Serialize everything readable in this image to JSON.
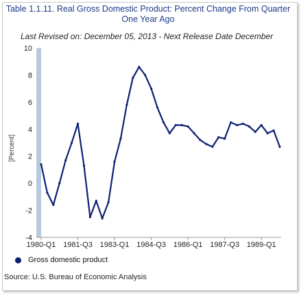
{
  "title": "Table 1.1.11. Real Gross Domestic Product: Percent Change From Quarter One Year Ago",
  "subtitle": "Last Revised on: December 05, 2013 - Next Release Date December",
  "source": "Source: U.S. Bureau of Economic Analysis",
  "colors": {
    "series": "#0d1f73",
    "axis_band": "#b7c9dc",
    "title": "#1f3a8a"
  },
  "chart_data": {
    "type": "line",
    "title": "Table 1.1.11. Real Gross Domestic Product: Percent Change From Quarter One Year Ago",
    "xlabel": "",
    "ylabel": "[Percent]",
    "ylim": [
      -4,
      10
    ],
    "yticks": [
      "-4",
      "-2",
      "0",
      "2",
      "4",
      "6",
      "8",
      "10"
    ],
    "xtick_labels": [
      "1980-Q1",
      "1981-Q3",
      "1983-Q1",
      "1984-Q3",
      "1986-Q1",
      "1987-Q3",
      "1989-Q1"
    ],
    "grid": false,
    "legend_position": "bottom-left",
    "x": [
      "1980-Q1",
      "1980-Q2",
      "1980-Q3",
      "1980-Q4",
      "1981-Q1",
      "1981-Q2",
      "1981-Q3",
      "1981-Q4",
      "1982-Q1",
      "1982-Q2",
      "1982-Q3",
      "1982-Q4",
      "1983-Q1",
      "1983-Q2",
      "1983-Q3",
      "1983-Q4",
      "1984-Q1",
      "1984-Q2",
      "1984-Q3",
      "1984-Q4",
      "1985-Q1",
      "1985-Q2",
      "1985-Q3",
      "1985-Q4",
      "1986-Q1",
      "1986-Q2",
      "1986-Q3",
      "1986-Q4",
      "1987-Q1",
      "1987-Q2",
      "1987-Q3",
      "1987-Q4",
      "1988-Q1",
      "1988-Q2",
      "1988-Q3",
      "1988-Q4",
      "1989-Q1",
      "1989-Q2",
      "1989-Q3",
      "1989-Q4"
    ],
    "series": [
      {
        "name": "Gross domestic product",
        "values": [
          1.4,
          -0.7,
          -1.6,
          0.0,
          1.7,
          3.0,
          4.4,
          1.3,
          -2.5,
          -1.3,
          -2.6,
          -1.4,
          1.6,
          3.3,
          5.8,
          7.8,
          8.6,
          8.0,
          7.0,
          5.6,
          4.5,
          3.7,
          4.3,
          4.3,
          4.2,
          3.7,
          3.2,
          2.9,
          2.7,
          3.4,
          3.3,
          4.5,
          4.3,
          4.4,
          4.2,
          3.8,
          4.3,
          3.7,
          3.9,
          2.7
        ]
      }
    ]
  }
}
